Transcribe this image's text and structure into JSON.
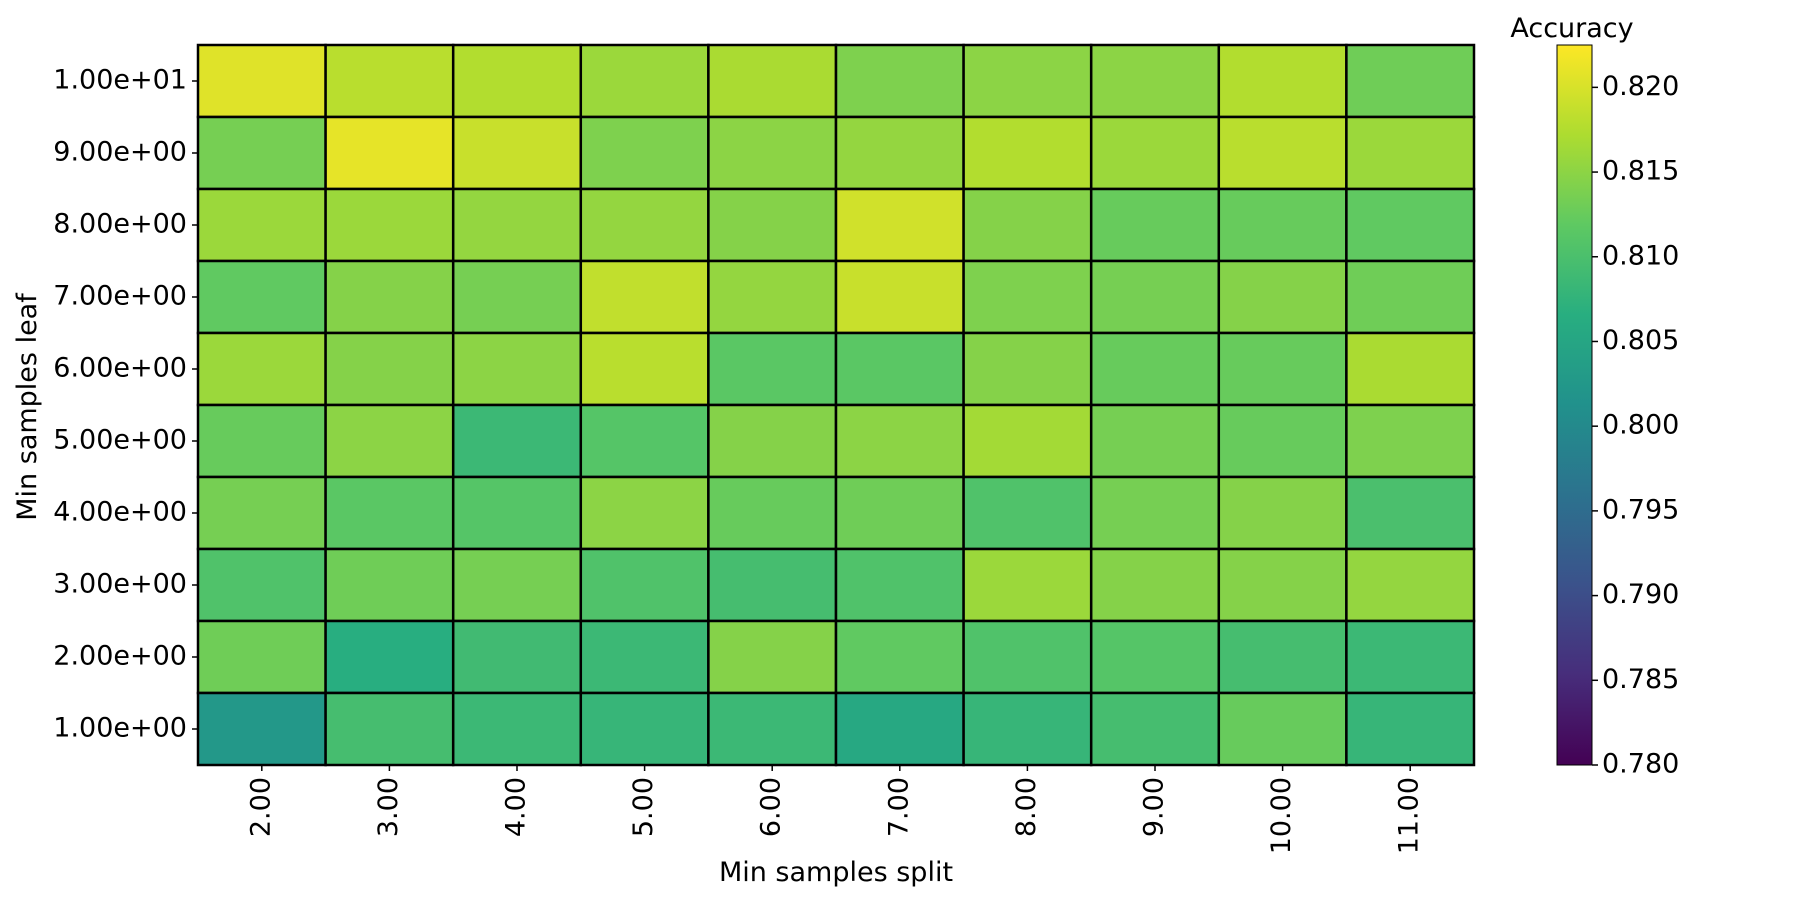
{
  "chart_data": {
    "type": "heatmap",
    "title": "",
    "xlabel": "Min samples split",
    "ylabel": "Min samples leaf",
    "x_ticks": [
      "2.00",
      "3.00",
      "4.00",
      "5.00",
      "6.00",
      "7.00",
      "8.00",
      "9.00",
      "10.00",
      "11.00"
    ],
    "y_ticks": [
      "1.00e+01",
      "9.00e+00",
      "8.00e+00",
      "7.00e+00",
      "6.00e+00",
      "5.00e+00",
      "4.00e+00",
      "3.00e+00",
      "2.00e+00",
      "1.00e+00"
    ],
    "x": [
      2,
      3,
      4,
      5,
      6,
      7,
      8,
      9,
      10,
      11
    ],
    "y": [
      10,
      9,
      8,
      7,
      6,
      5,
      4,
      3,
      2,
      1
    ],
    "values": [
      [
        0.8205,
        0.818,
        0.8175,
        0.816,
        0.817,
        0.814,
        0.815,
        0.815,
        0.8175,
        0.813
      ],
      [
        0.8135,
        0.821,
        0.819,
        0.814,
        0.815,
        0.8155,
        0.8175,
        0.816,
        0.818,
        0.816
      ],
      [
        0.816,
        0.816,
        0.8155,
        0.8155,
        0.8145,
        0.8195,
        0.8145,
        0.8125,
        0.8125,
        0.812
      ],
      [
        0.812,
        0.8145,
        0.8135,
        0.8185,
        0.8155,
        0.819,
        0.814,
        0.8135,
        0.8145,
        0.813
      ],
      [
        0.816,
        0.8145,
        0.815,
        0.818,
        0.8115,
        0.8115,
        0.8145,
        0.8125,
        0.8125,
        0.817
      ],
      [
        0.8125,
        0.815,
        0.8085,
        0.811,
        0.8145,
        0.815,
        0.8165,
        0.8135,
        0.8125,
        0.814
      ],
      [
        0.8135,
        0.8115,
        0.811,
        0.815,
        0.8125,
        0.813,
        0.8105,
        0.8135,
        0.8145,
        0.81
      ],
      [
        0.8105,
        0.813,
        0.8135,
        0.8105,
        0.8095,
        0.8105,
        0.816,
        0.8145,
        0.8145,
        0.8155
      ],
      [
        0.813,
        0.8065,
        0.809,
        0.8085,
        0.8145,
        0.812,
        0.8105,
        0.811,
        0.8095,
        0.8085
      ],
      [
        0.8025,
        0.8095,
        0.8085,
        0.808,
        0.8085,
        0.8055,
        0.808,
        0.8095,
        0.8125,
        0.808
      ]
    ],
    "colormap": "viridis",
    "colorbar": {
      "label": "Accuracy",
      "range": [
        0.78,
        0.8225
      ],
      "ticks": [
        "0.780",
        "0.785",
        "0.790",
        "0.795",
        "0.800",
        "0.805",
        "0.810",
        "0.815",
        "0.820"
      ],
      "tick_values": [
        0.78,
        0.785,
        0.79,
        0.795,
        0.8,
        0.805,
        0.81,
        0.815,
        0.82
      ]
    },
    "grid": false,
    "cell_edge_color": "#000000"
  }
}
